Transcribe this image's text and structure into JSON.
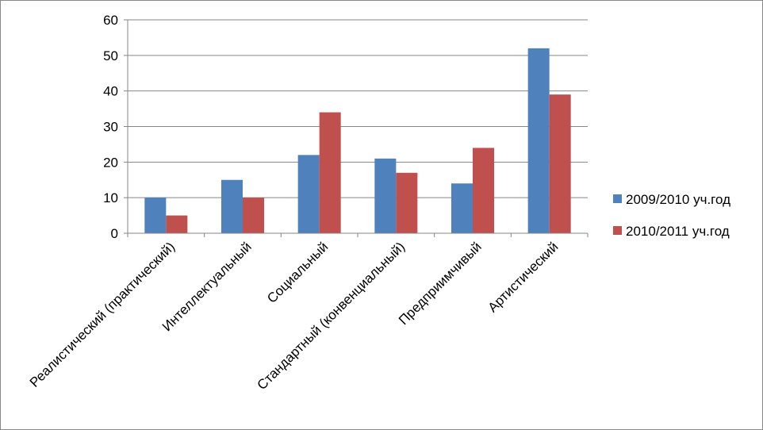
{
  "chart_data": {
    "type": "bar",
    "categories": [
      "Реалистический (практический)",
      "Интеллектуальный",
      "Социальный",
      "Стандартный (конвенциальный)",
      "Предприимчивый",
      "Артистический"
    ],
    "series": [
      {
        "name": "2009/2010 уч.год",
        "color": "#4f81bd",
        "values": [
          10,
          15,
          22,
          21,
          14,
          52
        ]
      },
      {
        "name": "2010/2011 уч.год",
        "color": "#c0504d",
        "values": [
          5,
          10,
          34,
          17,
          24,
          39
        ]
      }
    ],
    "ylim": [
      0,
      60
    ],
    "yticks": [
      0,
      10,
      20,
      30,
      40,
      50,
      60
    ],
    "grid": true,
    "legend": "right"
  }
}
